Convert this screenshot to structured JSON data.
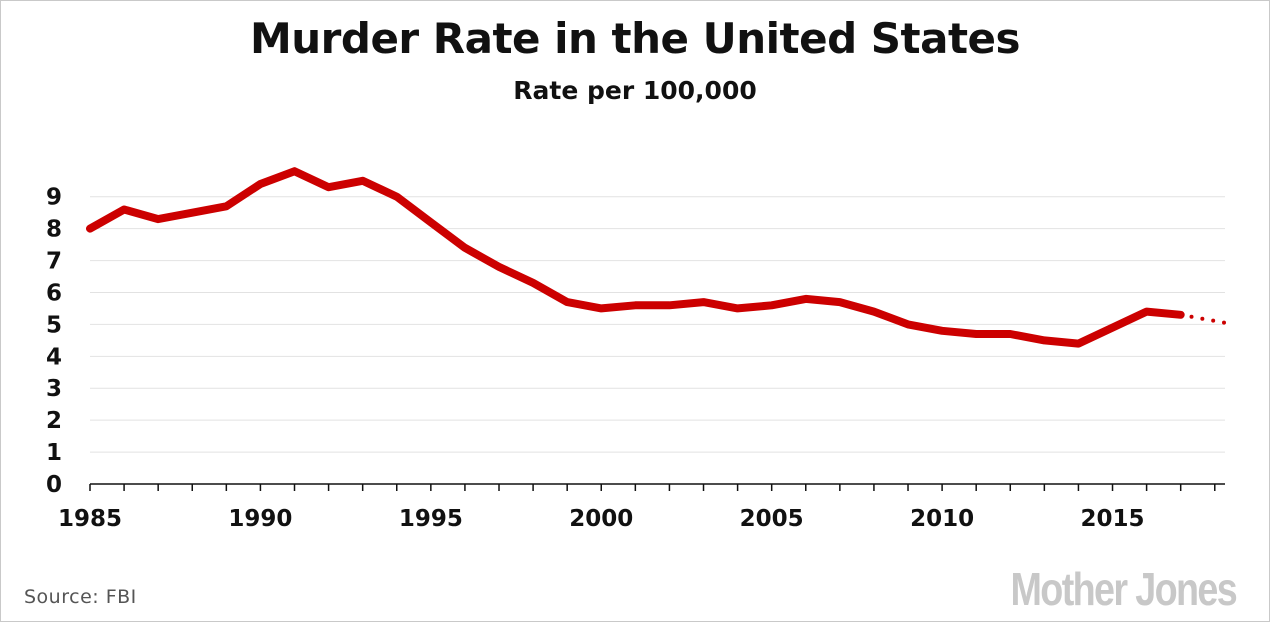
{
  "colors": {
    "line": "#cc0000",
    "grid": "#e2e2e2",
    "axis": "#111111",
    "text": "#111111",
    "brand": "#c8c8c8"
  },
  "footer": {
    "source": "Source:  FBI",
    "brand": "Mother Jones"
  },
  "chart_data": {
    "type": "line",
    "title": "Murder Rate in the United States",
    "subtitle": "Rate per 100,000",
    "xlabel": "",
    "ylabel": "",
    "xlim": [
      1985,
      2018.3
    ],
    "ylim": [
      0,
      9.9
    ],
    "xticks": [
      1985,
      1990,
      1995,
      2000,
      2005,
      2010,
      2015
    ],
    "yticks": [
      0,
      1,
      2,
      3,
      4,
      5,
      6,
      7,
      8,
      9
    ],
    "grid": true,
    "series": [
      {
        "style": "solid",
        "x": [
          1985,
          1986,
          1987,
          1988,
          1989,
          1990,
          1991,
          1992,
          1993,
          1994,
          1995,
          1996,
          1997,
          1998,
          1999,
          2000,
          2001,
          2002,
          2003,
          2004,
          2005,
          2006,
          2007,
          2008,
          2009,
          2010,
          2011,
          2012,
          2013,
          2014,
          2015,
          2016,
          2017
        ],
        "y": [
          8.0,
          8.6,
          8.3,
          8.5,
          8.7,
          9.4,
          9.8,
          9.3,
          9.5,
          9.0,
          8.2,
          7.4,
          6.8,
          6.3,
          5.7,
          5.5,
          5.6,
          5.6,
          5.7,
          5.5,
          5.6,
          5.8,
          5.7,
          5.4,
          5.0,
          4.8,
          4.7,
          4.7,
          4.5,
          4.4,
          4.9,
          5.4,
          5.3
        ]
      },
      {
        "style": "dotted",
        "x": [
          2017,
          2018.3
        ],
        "y": [
          5.3,
          5.05
        ]
      }
    ]
  }
}
